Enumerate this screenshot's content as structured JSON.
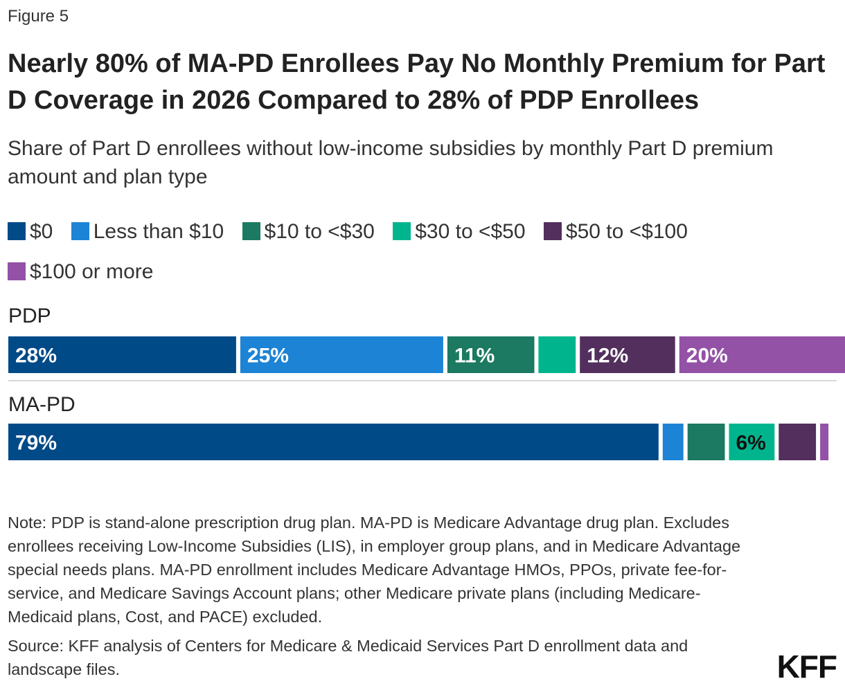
{
  "figure_label": "Figure 5",
  "title": "Nearly 80% of MA-PD Enrollees Pay No Monthly Premium for Part D Coverage in 2026 Compared to 28% of PDP Enrollees",
  "subtitle": "Share of Part D enrollees without low-income subsidies by monthly Part D premium amount and plan type",
  "legend": [
    {
      "label": "$0",
      "color": "#004a87"
    },
    {
      "label": "Less than $10",
      "color": "#1c83d5"
    },
    {
      "label": "$10 to <$30",
      "color": "#1b7a61"
    },
    {
      "label": "$30 to <$50",
      "color": "#00b58d"
    },
    {
      "label": "$50 to <$100",
      "color": "#522f5c"
    },
    {
      "label": "$100 or more",
      "color": "#9352a6"
    }
  ],
  "chart_data": {
    "type": "bar",
    "orientation": "horizontal",
    "stacked": true,
    "categories": [
      "PDP",
      "MA-PD"
    ],
    "series": [
      {
        "name": "$0",
        "values": [
          28,
          79
        ],
        "labels": [
          "28%",
          "79%"
        ]
      },
      {
        "name": "Less than $10",
        "values": [
          25,
          3
        ],
        "labels": [
          "25%",
          ""
        ]
      },
      {
        "name": "$10 to <$30",
        "values": [
          11,
          5
        ],
        "labels": [
          "11%",
          ""
        ]
      },
      {
        "name": "$30 to <$50",
        "values": [
          5,
          6
        ],
        "labels": [
          "",
          "6%"
        ]
      },
      {
        "name": "$50 to <$100",
        "values": [
          12,
          5
        ],
        "labels": [
          "12%",
          ""
        ]
      },
      {
        "name": "$100 or more",
        "values": [
          20,
          1
        ],
        "labels": [
          "20%",
          ""
        ]
      }
    ],
    "xlim": [
      0,
      100
    ],
    "legend_position": "top"
  },
  "note": "Note: PDP is stand-alone prescription drug plan. MA-PD is Medicare Advantage drug plan. Excludes enrollees receiving Low-Income Subsidies (LIS), in employer group plans, and in Medicare Advantage special needs plans. MA-PD enrollment includes Medicare Advantage HMOs, PPOs, private fee-for-service, and Medicare Savings Account plans; other Medicare private plans (including Medicare-Medicaid plans, Cost, and PACE) excluded.",
  "source": "Source: KFF analysis of Centers for Medicare & Medicaid Services Part D enrollment data and landscape files.",
  "logo": "KFF"
}
